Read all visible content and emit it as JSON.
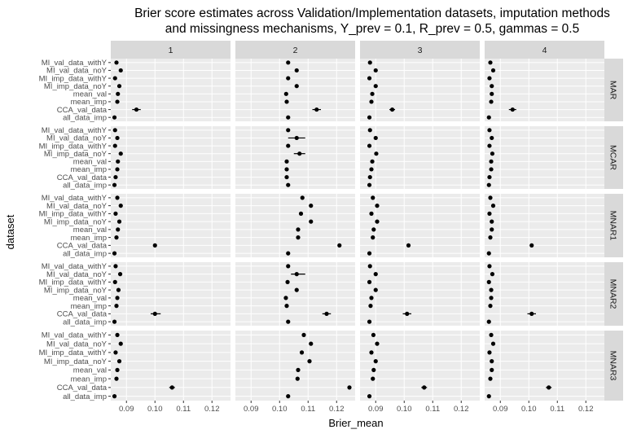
{
  "chart_data": {
    "type": "scatter",
    "title": "Brier score estimates across Validation/Implementation datasets, imputation methods and missingness mechanisms, Y_prev = 0.1, R_prev = 0.5, gammas = 0.5",
    "title_lines": [
      "Brier score estimates across Validation/Implementation datasets, imputation methods",
      "and missingness mechanisms, Y_prev = 0.1, R_prev = 0.5, gammas = 0.5"
    ],
    "xlabel": "Brier_mean",
    "ylabel": "dataset",
    "xlim": [
      0.0845,
      0.1265
    ],
    "x_ticks": [
      0.09,
      0.1,
      0.11,
      0.12
    ],
    "x_tick_labels": [
      "0.09",
      "0.10",
      "0.11",
      "0.12"
    ],
    "grid": true,
    "categories": [
      "MI_val_data_withY",
      "MI_val_data_noY",
      "MI_imp_data_withY",
      "MI_imp_data_noY",
      "mean_val",
      "mean_imp",
      "CCA_val_data",
      "all_data_imp"
    ],
    "columns": [
      "1",
      "2",
      "3",
      "4"
    ],
    "rows": [
      "MAR",
      "MCAR",
      "MNAR1",
      "MNAR2",
      "MNAR3"
    ],
    "panels": [
      {
        "row": "MAR",
        "col": "1",
        "points": [
          {
            "y": "MI_val_data_withY",
            "x": 0.0865
          },
          {
            "y": "MI_val_data_noY",
            "x": 0.088
          },
          {
            "y": "MI_imp_data_withY",
            "x": 0.086
          },
          {
            "y": "MI_imp_data_noY",
            "x": 0.0875
          },
          {
            "y": "mean_val",
            "x": 0.087
          },
          {
            "y": "mean_imp",
            "x": 0.0868
          },
          {
            "y": "CCA_val_data",
            "x": 0.0935,
            "xmin": 0.092,
            "xmax": 0.095
          },
          {
            "y": "all_data_imp",
            "x": 0.0858
          }
        ]
      },
      {
        "row": "MAR",
        "col": "2",
        "points": [
          {
            "y": "MI_val_data_withY",
            "x": 0.103
          },
          {
            "y": "MI_val_data_noY",
            "x": 0.106
          },
          {
            "y": "MI_imp_data_withY",
            "x": 0.103
          },
          {
            "y": "MI_imp_data_noY",
            "x": 0.106
          },
          {
            "y": "mean_val",
            "x": 0.1023
          },
          {
            "y": "mean_imp",
            "x": 0.1025
          },
          {
            "y": "CCA_val_data",
            "x": 0.113,
            "xmin": 0.1115,
            "xmax": 0.1145
          },
          {
            "y": "all_data_imp",
            "x": 0.103
          }
        ]
      },
      {
        "row": "MAR",
        "col": "3",
        "points": [
          {
            "y": "MI_val_data_withY",
            "x": 0.088
          },
          {
            "y": "MI_val_data_noY",
            "x": 0.09
          },
          {
            "y": "MI_imp_data_withY",
            "x": 0.0878
          },
          {
            "y": "MI_imp_data_noY",
            "x": 0.09
          },
          {
            "y": "mean_val",
            "x": 0.0888
          },
          {
            "y": "mean_imp",
            "x": 0.0885
          },
          {
            "y": "CCA_val_data",
            "x": 0.0958,
            "xmin": 0.0948,
            "xmax": 0.0968
          },
          {
            "y": "all_data_imp",
            "x": 0.0878
          }
        ]
      },
      {
        "row": "MAR",
        "col": "4",
        "points": [
          {
            "y": "MI_val_data_withY",
            "x": 0.0865
          },
          {
            "y": "MI_val_data_noY",
            "x": 0.0875
          },
          {
            "y": "MI_imp_data_withY",
            "x": 0.0862
          },
          {
            "y": "MI_imp_data_noY",
            "x": 0.087
          },
          {
            "y": "mean_val",
            "x": 0.087
          },
          {
            "y": "mean_imp",
            "x": 0.0868
          },
          {
            "y": "CCA_val_data",
            "x": 0.0943,
            "xmin": 0.093,
            "xmax": 0.0956
          },
          {
            "y": "all_data_imp",
            "x": 0.086
          }
        ]
      },
      {
        "row": "MCAR",
        "col": "1",
        "points": [
          {
            "y": "MI_val_data_withY",
            "x": 0.086
          },
          {
            "y": "MI_val_data_noY",
            "x": 0.0868
          },
          {
            "y": "MI_imp_data_withY",
            "x": 0.086
          },
          {
            "y": "MI_imp_data_noY",
            "x": 0.088
          },
          {
            "y": "mean_val",
            "x": 0.087
          },
          {
            "y": "mean_imp",
            "x": 0.0868
          },
          {
            "y": "CCA_val_data",
            "x": 0.0862
          },
          {
            "y": "all_data_imp",
            "x": 0.0858
          }
        ]
      },
      {
        "row": "MCAR",
        "col": "2",
        "points": [
          {
            "y": "MI_val_data_withY",
            "x": 0.103
          },
          {
            "y": "MI_val_data_noY",
            "x": 0.106,
            "xmin": 0.103,
            "xmax": 0.109
          },
          {
            "y": "MI_imp_data_withY",
            "x": 0.103
          },
          {
            "y": "MI_imp_data_noY",
            "x": 0.107,
            "xmin": 0.105,
            "xmax": 0.109
          },
          {
            "y": "mean_val",
            "x": 0.1025
          },
          {
            "y": "mean_imp",
            "x": 0.1025
          },
          {
            "y": "CCA_val_data",
            "x": 0.1025
          },
          {
            "y": "all_data_imp",
            "x": 0.103
          }
        ]
      },
      {
        "row": "MCAR",
        "col": "3",
        "points": [
          {
            "y": "MI_val_data_withY",
            "x": 0.088
          },
          {
            "y": "MI_val_data_noY",
            "x": 0.09
          },
          {
            "y": "MI_imp_data_withY",
            "x": 0.0878
          },
          {
            "y": "MI_imp_data_noY",
            "x": 0.0902
          },
          {
            "y": "mean_val",
            "x": 0.0888
          },
          {
            "y": "mean_imp",
            "x": 0.0885
          },
          {
            "y": "CCA_val_data",
            "x": 0.088
          },
          {
            "y": "all_data_imp",
            "x": 0.0878
          }
        ]
      },
      {
        "row": "MCAR",
        "col": "4",
        "points": [
          {
            "y": "MI_val_data_withY",
            "x": 0.0862
          },
          {
            "y": "MI_val_data_noY",
            "x": 0.087
          },
          {
            "y": "MI_imp_data_withY",
            "x": 0.0862
          },
          {
            "y": "MI_imp_data_noY",
            "x": 0.0872
          },
          {
            "y": "mean_val",
            "x": 0.0868
          },
          {
            "y": "mean_imp",
            "x": 0.0868
          },
          {
            "y": "CCA_val_data",
            "x": 0.0862
          },
          {
            "y": "all_data_imp",
            "x": 0.086
          }
        ]
      },
      {
        "row": "MNAR1",
        "col": "1",
        "points": [
          {
            "y": "MI_val_data_withY",
            "x": 0.0868
          },
          {
            "y": "MI_val_data_noY",
            "x": 0.088
          },
          {
            "y": "MI_imp_data_withY",
            "x": 0.0862
          },
          {
            "y": "MI_imp_data_noY",
            "x": 0.0875
          },
          {
            "y": "mean_val",
            "x": 0.087
          },
          {
            "y": "mean_imp",
            "x": 0.0865
          },
          {
            "y": "CCA_val_data",
            "x": 0.1
          },
          {
            "y": "all_data_imp",
            "x": 0.0858
          }
        ]
      },
      {
        "row": "MNAR1",
        "col": "2",
        "points": [
          {
            "y": "MI_val_data_withY",
            "x": 0.108
          },
          {
            "y": "MI_val_data_noY",
            "x": 0.111
          },
          {
            "y": "MI_imp_data_withY",
            "x": 0.1075
          },
          {
            "y": "MI_imp_data_noY",
            "x": 0.111
          },
          {
            "y": "mean_val",
            "x": 0.1065
          },
          {
            "y": "mean_imp",
            "x": 0.1065
          },
          {
            "y": "CCA_val_data",
            "x": 0.121
          },
          {
            "y": "all_data_imp",
            "x": 0.103
          }
        ]
      },
      {
        "row": "MNAR1",
        "col": "3",
        "points": [
          {
            "y": "MI_val_data_withY",
            "x": 0.089
          },
          {
            "y": "MI_val_data_noY",
            "x": 0.0905
          },
          {
            "y": "MI_imp_data_withY",
            "x": 0.0885
          },
          {
            "y": "MI_imp_data_noY",
            "x": 0.0905
          },
          {
            "y": "mean_val",
            "x": 0.0893
          },
          {
            "y": "mean_imp",
            "x": 0.089
          },
          {
            "y": "CCA_val_data",
            "x": 0.1015
          },
          {
            "y": "all_data_imp",
            "x": 0.0878
          }
        ]
      },
      {
        "row": "MNAR1",
        "col": "4",
        "points": [
          {
            "y": "MI_val_data_withY",
            "x": 0.0865
          },
          {
            "y": "MI_val_data_noY",
            "x": 0.0875
          },
          {
            "y": "MI_imp_data_withY",
            "x": 0.0862
          },
          {
            "y": "MI_imp_data_noY",
            "x": 0.087
          },
          {
            "y": "mean_val",
            "x": 0.087
          },
          {
            "y": "mean_imp",
            "x": 0.0865
          },
          {
            "y": "CCA_val_data",
            "x": 0.101
          },
          {
            "y": "all_data_imp",
            "x": 0.086
          }
        ]
      },
      {
        "row": "MNAR2",
        "col": "1",
        "points": [
          {
            "y": "MI_val_data_withY",
            "x": 0.0862
          },
          {
            "y": "MI_val_data_noY",
            "x": 0.0878
          },
          {
            "y": "MI_imp_data_withY",
            "x": 0.086
          },
          {
            "y": "MI_imp_data_noY",
            "x": 0.0872
          },
          {
            "y": "mean_val",
            "x": 0.0868
          },
          {
            "y": "mean_imp",
            "x": 0.0865
          },
          {
            "y": "CCA_val_data",
            "x": 0.1,
            "xmin": 0.0985,
            "xmax": 0.102
          },
          {
            "y": "all_data_imp",
            "x": 0.0858
          }
        ]
      },
      {
        "row": "MNAR2",
        "col": "2",
        "points": [
          {
            "y": "MI_val_data_withY",
            "x": 0.103
          },
          {
            "y": "MI_val_data_noY",
            "x": 0.106,
            "xmin": 0.104,
            "xmax": 0.109
          },
          {
            "y": "MI_imp_data_withY",
            "x": 0.1028
          },
          {
            "y": "MI_imp_data_noY",
            "x": 0.106
          },
          {
            "y": "mean_val",
            "x": 0.1022
          },
          {
            "y": "mean_imp",
            "x": 0.1025
          },
          {
            "y": "CCA_val_data",
            "x": 0.1165,
            "xmin": 0.115,
            "xmax": 0.118
          },
          {
            "y": "all_data_imp",
            "x": 0.103
          }
        ]
      },
      {
        "row": "MNAR2",
        "col": "3",
        "points": [
          {
            "y": "MI_val_data_withY",
            "x": 0.088
          },
          {
            "y": "MI_val_data_noY",
            "x": 0.09
          },
          {
            "y": "MI_imp_data_withY",
            "x": 0.0878
          },
          {
            "y": "MI_imp_data_noY",
            "x": 0.09
          },
          {
            "y": "mean_val",
            "x": 0.0885
          },
          {
            "y": "mean_imp",
            "x": 0.0882
          },
          {
            "y": "CCA_val_data",
            "x": 0.101,
            "xmin": 0.0995,
            "xmax": 0.1025
          },
          {
            "y": "all_data_imp",
            "x": 0.0878
          }
        ]
      },
      {
        "row": "MNAR2",
        "col": "4",
        "points": [
          {
            "y": "MI_val_data_withY",
            "x": 0.0862
          },
          {
            "y": "MI_val_data_noY",
            "x": 0.0872
          },
          {
            "y": "MI_imp_data_withY",
            "x": 0.086
          },
          {
            "y": "MI_imp_data_noY",
            "x": 0.0868
          },
          {
            "y": "mean_val",
            "x": 0.0868
          },
          {
            "y": "mean_imp",
            "x": 0.0865
          },
          {
            "y": "CCA_val_data",
            "x": 0.101,
            "xmin": 0.0995,
            "xmax": 0.1025
          },
          {
            "y": "all_data_imp",
            "x": 0.086
          }
        ]
      },
      {
        "row": "MNAR3",
        "col": "1",
        "points": [
          {
            "y": "MI_val_data_withY",
            "x": 0.0868
          },
          {
            "y": "MI_val_data_noY",
            "x": 0.088
          },
          {
            "y": "MI_imp_data_withY",
            "x": 0.0862
          },
          {
            "y": "MI_imp_data_noY",
            "x": 0.0875
          },
          {
            "y": "mean_val",
            "x": 0.0868
          },
          {
            "y": "mean_imp",
            "x": 0.0865
          },
          {
            "y": "CCA_val_data",
            "x": 0.106,
            "xmin": 0.105,
            "xmax": 0.107
          },
          {
            "y": "all_data_imp",
            "x": 0.0858
          }
        ]
      },
      {
        "row": "MNAR3",
        "col": "2",
        "points": [
          {
            "y": "MI_val_data_withY",
            "x": 0.1085
          },
          {
            "y": "MI_val_data_noY",
            "x": 0.111
          },
          {
            "y": "MI_imp_data_withY",
            "x": 0.1078
          },
          {
            "y": "MI_imp_data_noY",
            "x": 0.1105
          },
          {
            "y": "mean_val",
            "x": 0.1065
          },
          {
            "y": "mean_imp",
            "x": 0.1063
          },
          {
            "y": "CCA_val_data",
            "x": 0.1245
          },
          {
            "y": "all_data_imp",
            "x": 0.103
          }
        ]
      },
      {
        "row": "MNAR3",
        "col": "3",
        "points": [
          {
            "y": "MI_val_data_withY",
            "x": 0.0892
          },
          {
            "y": "MI_val_data_noY",
            "x": 0.0905
          },
          {
            "y": "MI_imp_data_withY",
            "x": 0.0885
          },
          {
            "y": "MI_imp_data_noY",
            "x": 0.09
          },
          {
            "y": "mean_val",
            "x": 0.0893
          },
          {
            "y": "mean_imp",
            "x": 0.089
          },
          {
            "y": "CCA_val_data",
            "x": 0.107,
            "xmin": 0.106,
            "xmax": 0.108
          },
          {
            "y": "all_data_imp",
            "x": 0.0878
          }
        ]
      },
      {
        "row": "MNAR3",
        "col": "4",
        "points": [
          {
            "y": "MI_val_data_withY",
            "x": 0.0868
          },
          {
            "y": "MI_val_data_noY",
            "x": 0.0875
          },
          {
            "y": "MI_imp_data_withY",
            "x": 0.0862
          },
          {
            "y": "MI_imp_data_noY",
            "x": 0.087
          },
          {
            "y": "mean_val",
            "x": 0.087
          },
          {
            "y": "mean_imp",
            "x": 0.0865
          },
          {
            "y": "CCA_val_data",
            "x": 0.107,
            "xmin": 0.106,
            "xmax": 0.108
          },
          {
            "y": "all_data_imp",
            "x": 0.086
          }
        ]
      }
    ]
  },
  "colors": {
    "panel_background": "#ebebeb",
    "strip_background": "#d9d9d9",
    "grid_major": "#ffffff",
    "point": "#000000",
    "tick_text": "#4d4d4d"
  }
}
